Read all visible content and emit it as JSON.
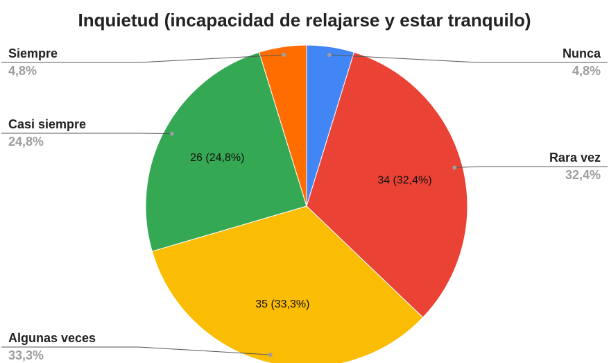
{
  "chart_data": {
    "type": "pie",
    "title": "Inquietud (incapacidad de relajarse y estar tranquilo)",
    "categories": [
      "Nunca",
      "Rara vez",
      "Algunas veces",
      "Casi siempre",
      "Siempre"
    ],
    "values": [
      5,
      34,
      35,
      26,
      5
    ],
    "value_labels": [
      null,
      "34 (32,4%)",
      "35 (33,3%)",
      "26 (24,8%)",
      null
    ],
    "percent_labels": [
      "4,8%",
      "32,4%",
      "33,3%",
      "24,8%",
      "4,8%"
    ],
    "colors": [
      "#4285f4",
      "#ea4335",
      "#fbbc04",
      "#34a853",
      "#ff6d01"
    ]
  }
}
